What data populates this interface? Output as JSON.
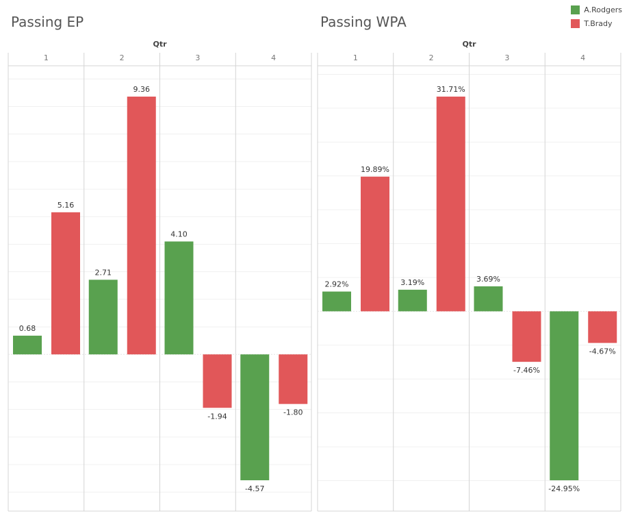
{
  "legend": {
    "items": [
      {
        "label": "A.Rodgers",
        "color": "#59a14f"
      },
      {
        "label": "T.Brady",
        "color": "#e15759"
      }
    ]
  },
  "chart_data": [
    {
      "type": "bar",
      "title": "Passing EP",
      "facet_label": "Qtr",
      "categories": [
        "1",
        "2",
        "3",
        "4"
      ],
      "series": [
        {
          "name": "A.Rodgers",
          "values": [
            0.68,
            2.71,
            4.1,
            -4.57
          ],
          "labels": [
            "0.68",
            "2.71",
            "4.10",
            "-4.57"
          ],
          "color": "#59a14f"
        },
        {
          "name": "T.Brady",
          "values": [
            5.16,
            9.36,
            -1.94,
            -1.8
          ],
          "labels": [
            "5.16",
            "9.36",
            "-1.94",
            "-1.80"
          ],
          "color": "#e15759"
        }
      ],
      "ylim": [
        -5.7,
        10.0
      ],
      "grid": true,
      "legend": "top-right"
    },
    {
      "type": "bar",
      "title": "Passing WPA",
      "facet_label": "Qtr",
      "categories": [
        "1",
        "2",
        "3",
        "4"
      ],
      "series": [
        {
          "name": "A.Rodgers",
          "values": [
            2.92,
            3.19,
            3.69,
            -24.95
          ],
          "labels": [
            "2.92%",
            "3.19%",
            "3.69%",
            "-24.95%"
          ],
          "color": "#59a14f"
        },
        {
          "name": "T.Brady",
          "values": [
            19.89,
            31.71,
            -7.46,
            -4.67
          ],
          "labels": [
            "19.89%",
            "31.71%",
            "-7.46%",
            "-4.67%"
          ],
          "color": "#e15759"
        }
      ],
      "ylim": [
        -29.5,
        36.0
      ],
      "grid": true,
      "legend": "top-right"
    }
  ]
}
